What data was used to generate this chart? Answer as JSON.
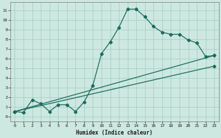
{
  "xlabel": "Humidex (Indice chaleur)",
  "ylabel": "",
  "background_color": "#cde8e0",
  "grid_color": "#a8cfc4",
  "line_color": "#1a6b60",
  "xlim": [
    -0.5,
    23.5
  ],
  "ylim": [
    -0.5,
    11.8
  ],
  "xticks": [
    0,
    1,
    2,
    3,
    4,
    5,
    6,
    7,
    8,
    9,
    10,
    11,
    12,
    13,
    14,
    15,
    16,
    17,
    18,
    19,
    20,
    21,
    22,
    23
  ],
  "yticks": [
    0,
    1,
    2,
    3,
    4,
    5,
    6,
    7,
    8,
    9,
    10,
    11
  ],
  "line1_x": [
    0,
    1,
    2,
    3,
    4,
    5,
    6,
    7,
    8,
    9,
    10,
    11,
    12,
    13,
    14,
    15,
    16,
    17,
    18,
    19,
    20,
    21,
    22,
    23
  ],
  "line1_y": [
    0.5,
    0.4,
    1.7,
    1.3,
    0.5,
    1.2,
    1.2,
    0.5,
    1.5,
    3.2,
    6.5,
    7.7,
    9.2,
    11.1,
    11.1,
    10.3,
    9.3,
    8.7,
    8.5,
    8.5,
    7.9,
    7.6,
    6.2,
    6.3
  ],
  "line2_x": [
    0,
    23
  ],
  "line2_y": [
    0.5,
    6.3
  ],
  "line3_x": [
    0,
    23
  ],
  "line3_y": [
    0.5,
    5.2
  ],
  "marker": "D",
  "markersize": 2.2,
  "linewidth": 0.9
}
